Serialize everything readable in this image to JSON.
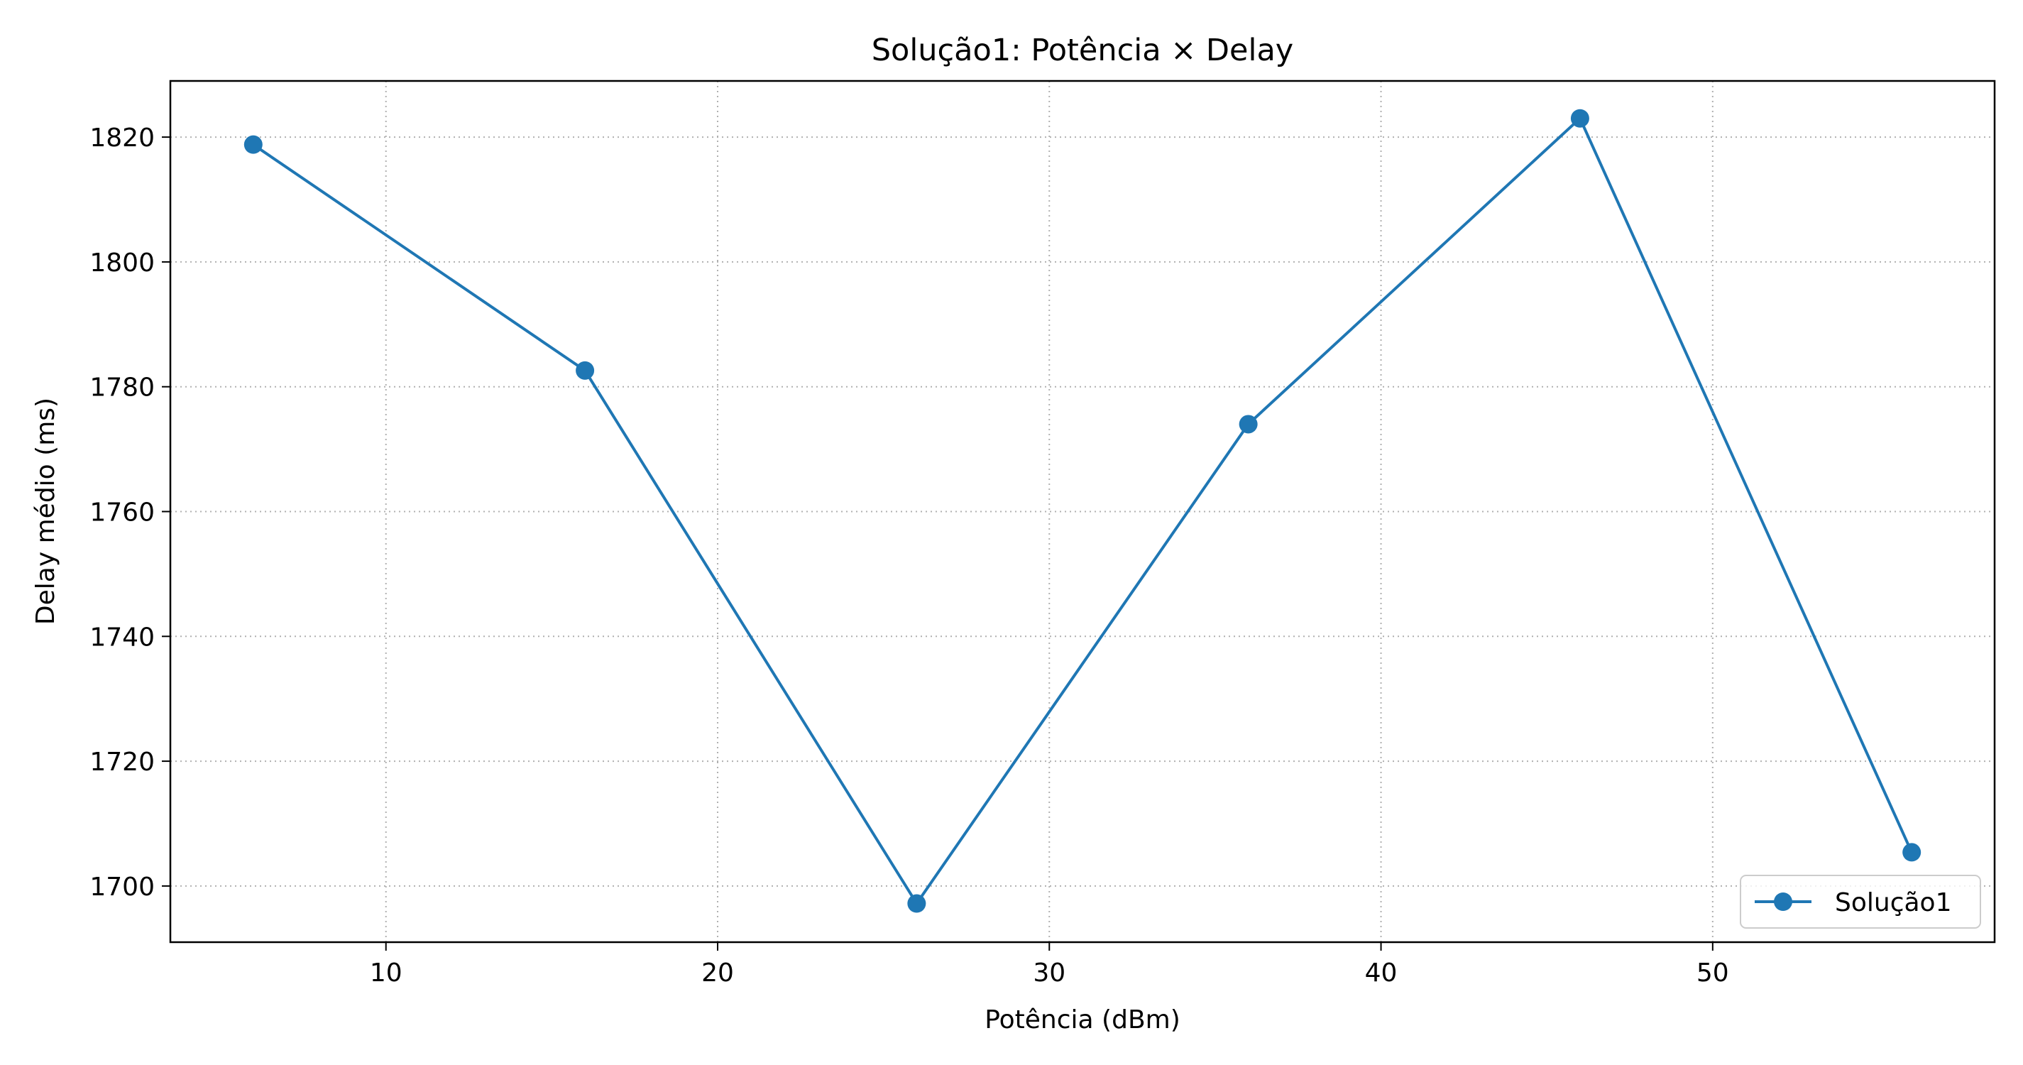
{
  "chart_data": {
    "type": "line",
    "title": "Solução1: Potência × Delay",
    "xlabel": "Potência (dBm)",
    "ylabel": "Delay médio (ms)",
    "xlim": [
      3.5,
      58.5
    ],
    "ylim": [
      1691,
      1829
    ],
    "xticks": [
      10,
      20,
      30,
      40,
      50
    ],
    "yticks": [
      1700,
      1720,
      1740,
      1760,
      1780,
      1800,
      1820
    ],
    "grid": true,
    "legend_position": "lower right",
    "series": [
      {
        "name": "Solução1",
        "color": "#1f77b4",
        "marker": "circle",
        "x": [
          6,
          16,
          26,
          36,
          46,
          56
        ],
        "y": [
          1818.8,
          1782.6,
          1697.2,
          1774.0,
          1823.0,
          1705.4
        ]
      }
    ]
  }
}
